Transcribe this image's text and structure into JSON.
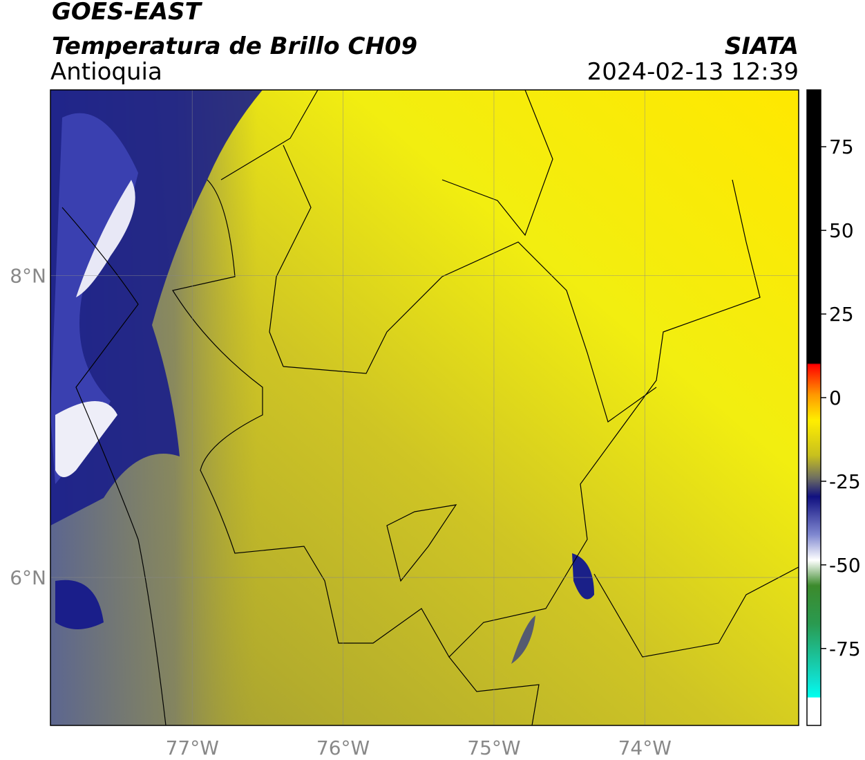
{
  "header": {
    "title": "GOES-EAST",
    "subtitle": "Temperatura de Brillo CH09",
    "region": "Antioquia",
    "source": "SIATA",
    "datetime": "2024-02-13 12:39"
  },
  "map": {
    "xlim": [
      -77.94,
      -72.98
    ],
    "ylim": [
      5.02,
      9.23
    ],
    "xticks": [
      {
        "value": -77,
        "label": "77°W"
      },
      {
        "value": -76,
        "label": "76°W"
      },
      {
        "value": -75,
        "label": "75°W"
      },
      {
        "value": -74,
        "label": "74°W"
      }
    ],
    "yticks": [
      {
        "value": 6,
        "label": "6°N"
      },
      {
        "value": 8,
        "label": "8°N"
      }
    ]
  },
  "colorbar": {
    "lim": [
      -98,
      92
    ],
    "ticks": [
      75,
      50,
      25,
      0,
      -25,
      -50,
      -75
    ]
  }
}
